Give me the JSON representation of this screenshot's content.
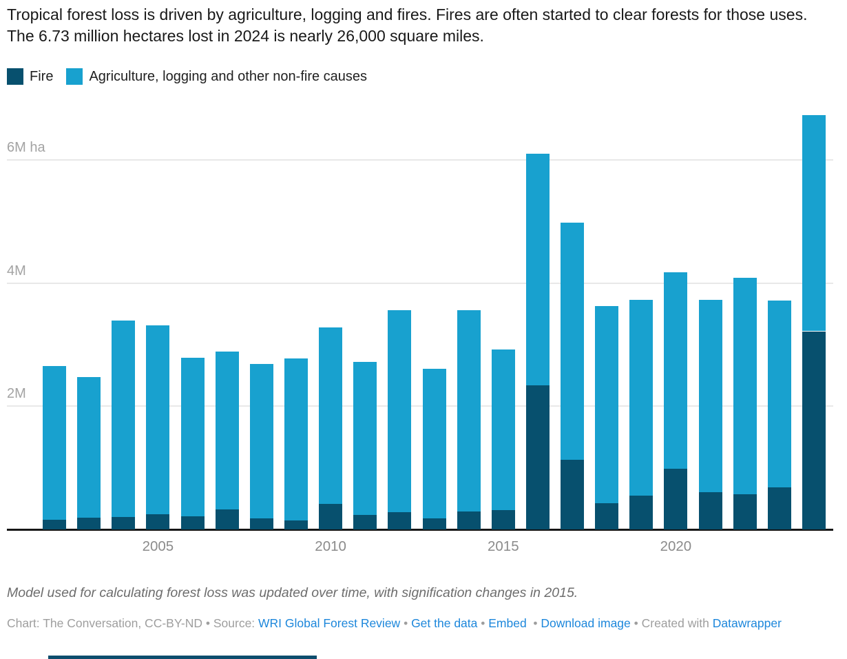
{
  "title": "Tropical forest loss is driven by agriculture, logging and fires. Fires are often started to clear forests for those uses. The 6.73 million hectares lost in 2024 is nearly 26,000 square miles.",
  "legend": {
    "items": [
      {
        "label": "Fire",
        "color": "#07506e"
      },
      {
        "label": "Agriculture, logging and other non-fire causes",
        "color": "#18a1cf"
      }
    ]
  },
  "note": "Model used for calculating forest loss was updated over time, with signification changes in 2015.",
  "attribution": {
    "segments": [
      {
        "text": "Chart: The Conversation, CC-BY-ND • Source: ",
        "link": false
      },
      {
        "text": "WRI Global Forest Review",
        "link": true
      },
      {
        "text": " • ",
        "link": false
      },
      {
        "text": "Get the data",
        "link": true
      },
      {
        "text": " • ",
        "link": false
      },
      {
        "text": "Embed",
        "link": true
      },
      {
        "text": "  • ",
        "link": false
      },
      {
        "text": "Download image",
        "link": true
      },
      {
        "text": " • Created with ",
        "link": false
      },
      {
        "text": "Datawrapper",
        "link": true
      }
    ],
    "text_color": "#9e9e9e",
    "link_color": "#1d87db"
  },
  "colors": {
    "fire": "#07506e",
    "non_fire": "#18a1cf",
    "gridline": "#e8e8e8",
    "axis": "#161616",
    "bottom_strip": "#0d4d6d"
  },
  "chart_data": {
    "type": "bar",
    "stacked": true,
    "title": "Tropical forest loss is driven by agriculture, logging and fires. Fires are often started to clear forests for those uses. The 6.73 million hectares lost in 2024 is nearly 26,000 square miles.",
    "xlabel": "",
    "ylabel": "M ha",
    "unit": "million hectares",
    "ylim": [
      0,
      7
    ],
    "grid": "horizontal",
    "legend_position": "top-left",
    "categories": [
      2002,
      2003,
      2004,
      2005,
      2006,
      2007,
      2008,
      2009,
      2010,
      2011,
      2012,
      2013,
      2014,
      2015,
      2016,
      2017,
      2018,
      2019,
      2020,
      2021,
      2022,
      2023,
      2024
    ],
    "series": [
      {
        "name": "Fire",
        "color": "#07506e",
        "values": [
          0.16,
          0.19,
          0.2,
          0.25,
          0.21,
          0.32,
          0.18,
          0.15,
          0.41,
          0.24,
          0.28,
          0.18,
          0.29,
          0.31,
          2.34,
          1.13,
          0.43,
          0.55,
          0.99,
          0.6,
          0.57,
          0.68,
          3.22
        ]
      },
      {
        "name": "Agriculture, logging and other non-fire causes",
        "color": "#18a1cf",
        "values": [
          2.49,
          2.28,
          3.19,
          3.06,
          2.58,
          2.57,
          2.51,
          2.63,
          2.87,
          2.48,
          3.28,
          2.43,
          3.27,
          2.61,
          3.76,
          3.85,
          3.2,
          3.18,
          3.19,
          3.13,
          3.52,
          3.04,
          3.51
        ]
      }
    ],
    "totals": [
      2.65,
      2.47,
      3.39,
      3.31,
      2.79,
      2.89,
      2.69,
      2.78,
      3.28,
      2.72,
      3.56,
      2.61,
      3.56,
      2.92,
      6.1,
      4.98,
      3.63,
      3.73,
      4.18,
      3.73,
      4.09,
      3.72,
      6.73
    ],
    "y_ticks": [
      {
        "value": 2,
        "label": "2M"
      },
      {
        "value": 4,
        "label": "4M"
      },
      {
        "value": 6,
        "label": "6M ha"
      }
    ],
    "x_ticks": [
      {
        "year": 2005,
        "label": "2005"
      },
      {
        "year": 2010,
        "label": "2010"
      },
      {
        "year": 2015,
        "label": "2015"
      },
      {
        "year": 2020,
        "label": "2020"
      }
    ]
  }
}
